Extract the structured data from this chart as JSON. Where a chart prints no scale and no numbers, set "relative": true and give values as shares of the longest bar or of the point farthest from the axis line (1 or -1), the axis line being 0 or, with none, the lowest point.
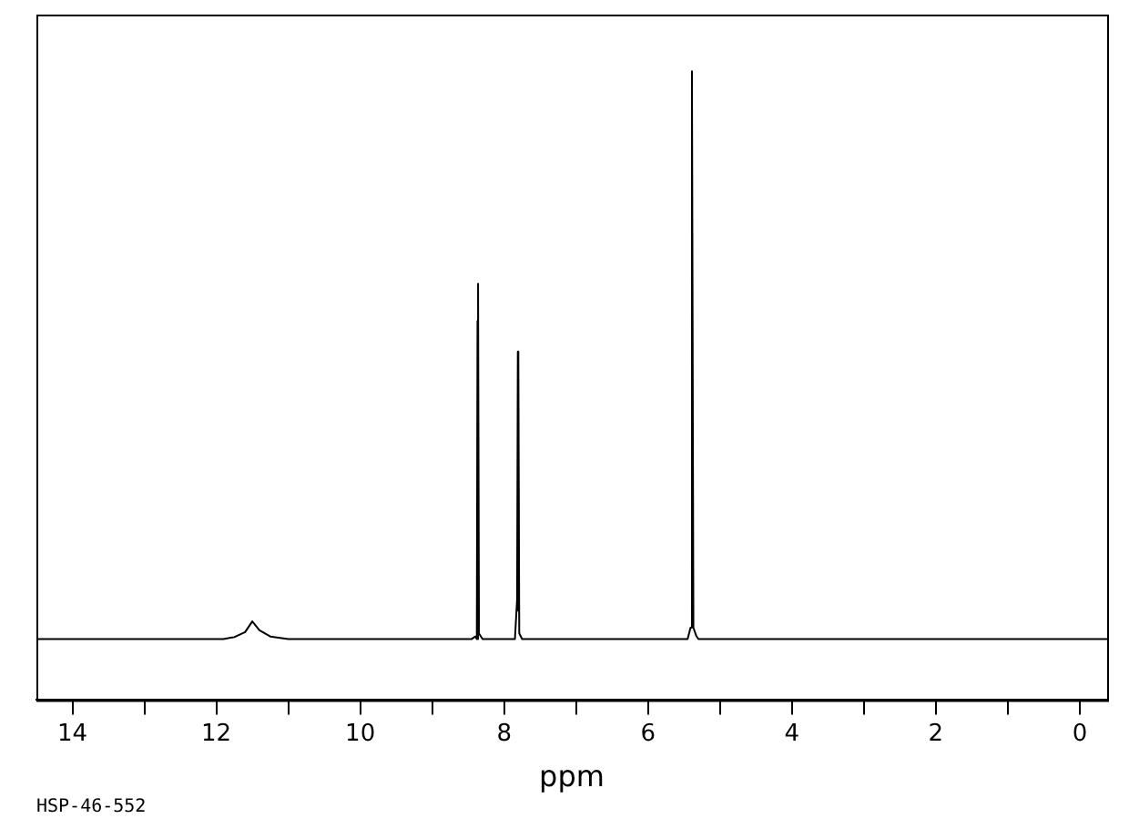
{
  "chart_data": {
    "type": "line",
    "relative": true,
    "xlabel": "ppm",
    "annotations": [
      "HSP-46-552"
    ],
    "xlim": [
      14.5,
      -0.38
    ],
    "xticks": [
      14,
      {
        "value": 13,
        "label": null
      },
      12,
      {
        "value": 11,
        "label": null
      },
      10,
      {
        "value": 9,
        "label": null
      },
      8,
      {
        "value": 7,
        "label": null
      },
      6,
      {
        "value": 5,
        "label": null
      },
      4,
      {
        "value": 3,
        "label": null
      },
      2,
      {
        "value": 1,
        "label": null
      },
      0
    ],
    "grid": false,
    "legend": false,
    "marker": "none",
    "line_style": "solid",
    "series": [
      {
        "color": "#000000",
        "x": [
          14.5,
          11.9,
          11.75,
          11.6,
          11.5,
          11.4,
          11.25,
          11.0,
          8.45,
          8.4,
          8.38,
          8.37,
          8.365,
          8.36,
          8.35,
          8.3,
          7.85,
          7.82,
          7.81,
          7.805,
          7.8,
          7.79,
          7.75,
          5.45,
          5.41,
          5.39,
          5.37,
          5.33,
          5.3,
          -0.38
        ],
        "values": [
          0.097,
          0.097,
          0.1,
          0.108,
          0.125,
          0.111,
          0.101,
          0.097,
          0.097,
          0.101,
          0.097,
          0.603,
          0.097,
          0.662,
          0.106,
          0.097,
          0.097,
          0.16,
          0.554,
          0.142,
          0.539,
          0.106,
          0.097,
          0.097,
          0.115,
          1,
          0.115,
          0.102,
          0.097,
          0.097
        ]
      }
    ]
  }
}
